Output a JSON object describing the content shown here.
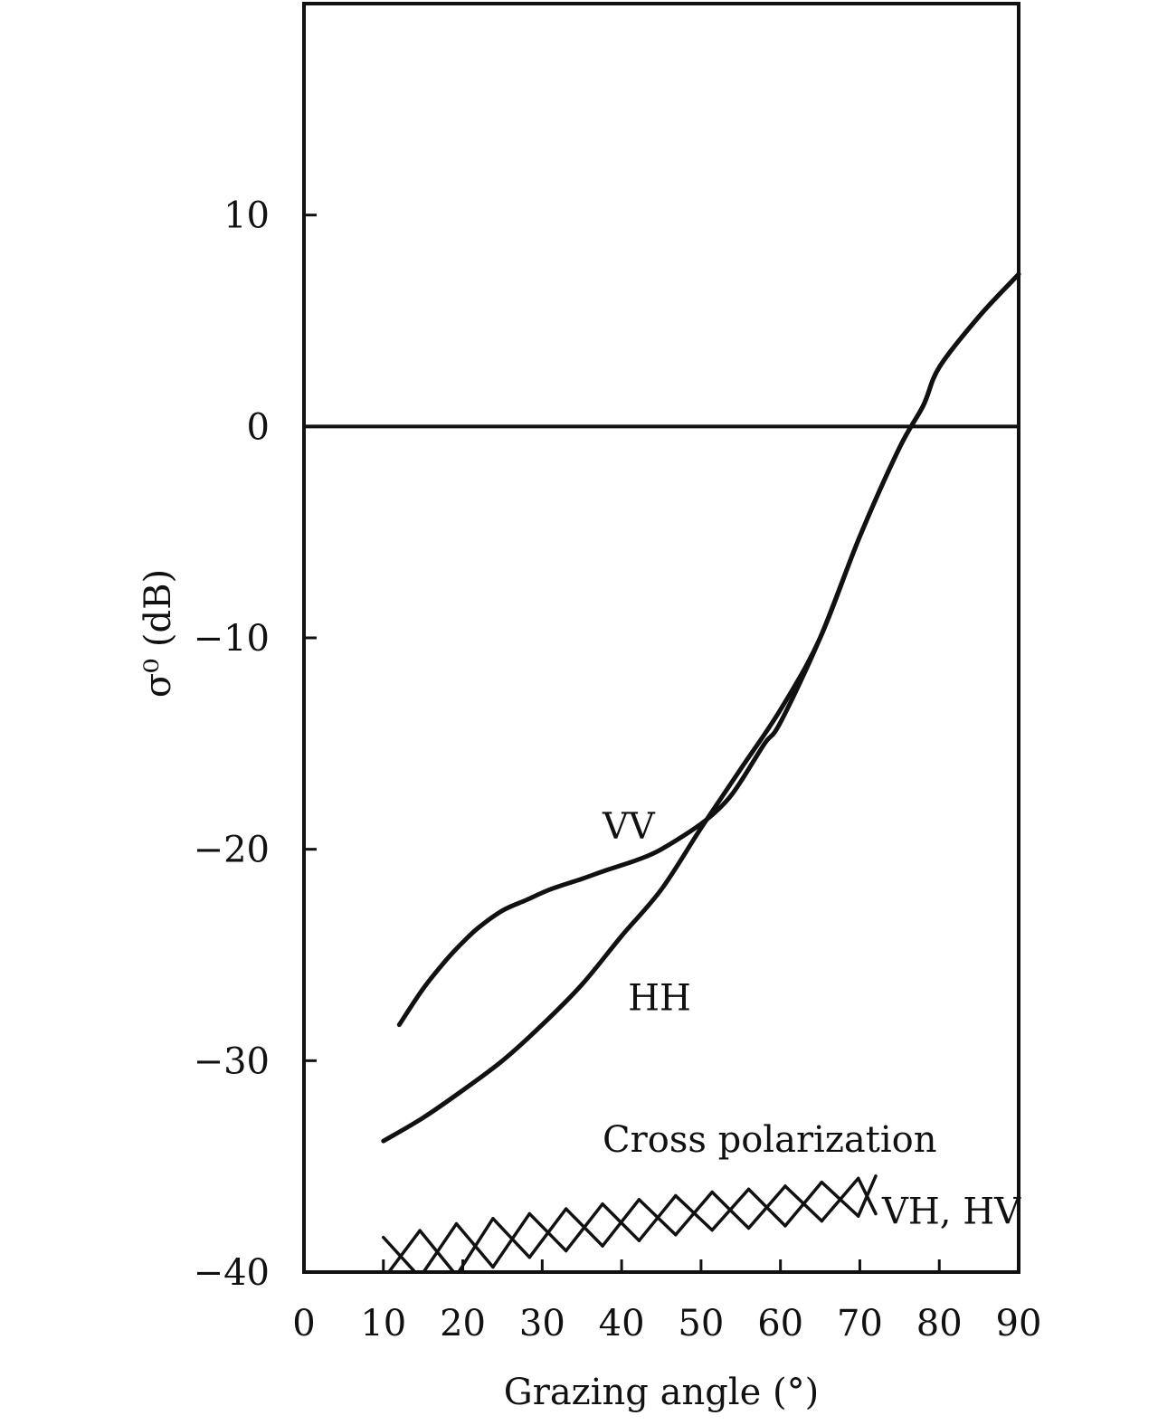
{
  "chart_data": {
    "type": "line",
    "xlabel": "Grazing angle (°)",
    "ylabel": "σ⁰ (dB)",
    "xlim": [
      0,
      90
    ],
    "ylim": [
      -40,
      20
    ],
    "x_ticks": [
      0,
      10,
      20,
      30,
      40,
      50,
      60,
      70,
      80,
      90
    ],
    "y_ticks": [
      -40,
      -30,
      -20,
      -10,
      0,
      10
    ],
    "x_tick_labels": [
      "0",
      "10",
      "20",
      "30",
      "40",
      "50",
      "60",
      "70",
      "80",
      "90"
    ],
    "y_tick_labels": [
      "−40",
      "−30",
      "−20",
      "−10",
      "0",
      "10"
    ],
    "reference_line_y": 0,
    "grid": false,
    "series": [
      {
        "name": "VV",
        "x": [
          12,
          15,
          18,
          20,
          22,
          25,
          28,
          31,
          35,
          38,
          42,
          45,
          50,
          53,
          55,
          58,
          60,
          65,
          70,
          75,
          78,
          80,
          85,
          90
        ],
        "y": [
          -28.3,
          -26.6,
          -25.2,
          -24.4,
          -23.7,
          -22.9,
          -22.4,
          -21.9,
          -21.4,
          -21.0,
          -20.5,
          -20.0,
          -18.8,
          -17.8,
          -16.8,
          -15.0,
          -14.0,
          -10.0,
          -5.2,
          -1.0,
          1.0,
          2.8,
          5.2,
          7.2
        ],
        "annotation": "VV"
      },
      {
        "name": "HH",
        "x": [
          10,
          15,
          20,
          25,
          30,
          35,
          40,
          45,
          50,
          55,
          60,
          65,
          70,
          75,
          78,
          80,
          85,
          90
        ],
        "y": [
          -33.8,
          -32.7,
          -31.4,
          -30.0,
          -28.3,
          -26.4,
          -24.1,
          -21.9,
          -19.0,
          -16.2,
          -13.4,
          -10.0,
          -5.2,
          -1.0,
          1.0,
          2.8,
          5.2,
          7.2
        ],
        "annotation": "HH"
      },
      {
        "name": "VH, HV",
        "style": "hatched-band",
        "x": [
          10,
          20,
          30,
          40,
          50,
          60,
          70,
          72
        ],
        "y_low": [
          -40.0,
          -39.8,
          -38.8,
          -38.3,
          -37.7,
          -37.5,
          -37.0,
          -36.9
        ],
        "y_high": [
          -38.7,
          -38.0,
          -37.5,
          -37.0,
          -36.6,
          -36.3,
          -35.9,
          -35.8
        ],
        "annotation": "VH, HV"
      }
    ],
    "annotations": [
      "VV",
      "HH",
      "Cross polarization",
      "VH, HV"
    ]
  }
}
